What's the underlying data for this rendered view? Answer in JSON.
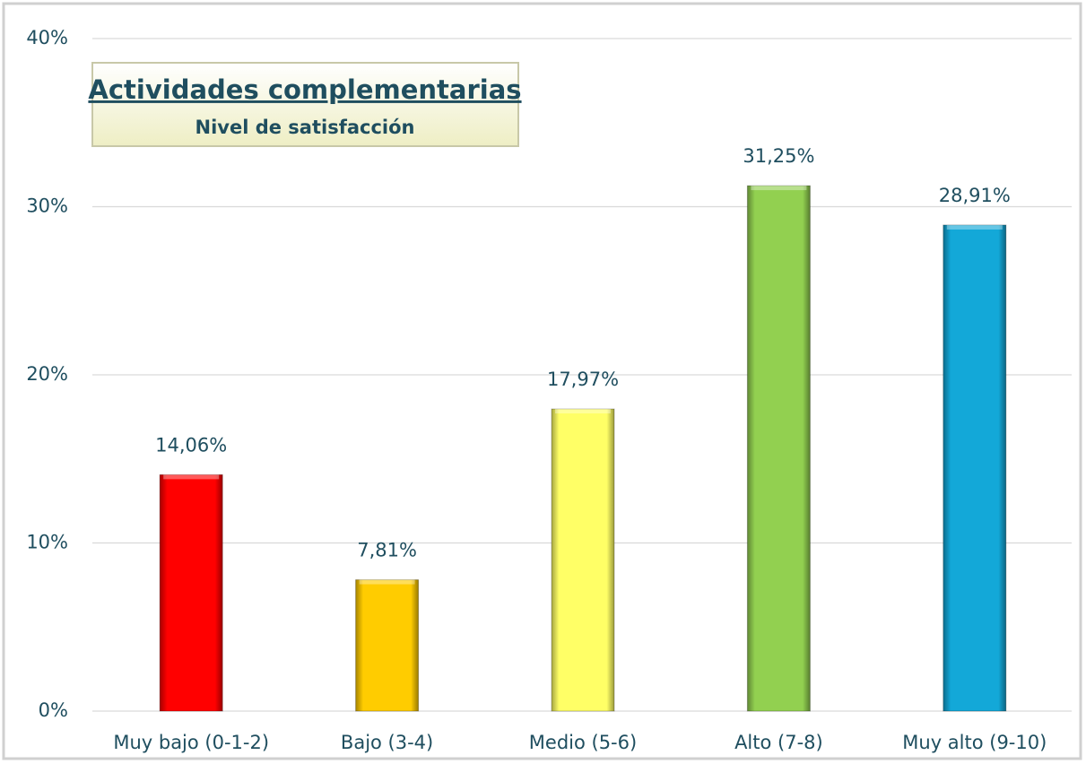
{
  "chart_data": {
    "type": "bar",
    "title": "Actividades complementarias",
    "subtitle": "Nivel de satisfacción",
    "categories": [
      "Muy bajo (0-1-2)",
      "Bajo (3-4)",
      "Medio (5-6)",
      "Alto (7-8)",
      "Muy alto (9-10)"
    ],
    "values": [
      14.06,
      7.81,
      17.97,
      31.25,
      28.91
    ],
    "value_labels": [
      "14,06%",
      "7,81%",
      "17,97%",
      "31,25%",
      "28,91%"
    ],
    "colors": [
      "#ff0000",
      "#ffcc00",
      "#ffff66",
      "#92d050",
      "#13a8d8"
    ],
    "ylim": [
      0,
      40
    ],
    "yticks": [
      {
        "value": 0,
        "label": "0%"
      },
      {
        "value": 10,
        "label": "10%"
      },
      {
        "value": 20,
        "label": "20%"
      },
      {
        "value": 30,
        "label": "30%"
      },
      {
        "value": 40,
        "label": "40%"
      }
    ],
    "grid": true
  }
}
